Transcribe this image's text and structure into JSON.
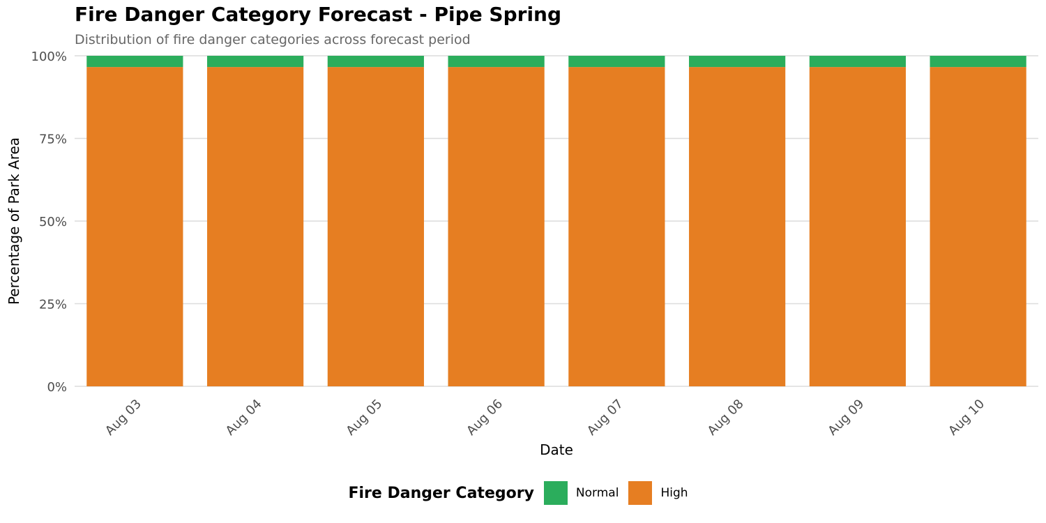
{
  "title": "Fire Danger Category Forecast - Pipe Spring",
  "subtitle": "Distribution of fire danger categories across forecast period",
  "legend": {
    "title": "Fire Danger Category",
    "placement": "bottom"
  },
  "colors": {
    "Normal": "#2bad5c",
    "High": "#e67e22",
    "grid": "#dcdcdc",
    "tick_text": "#4d4d4d"
  },
  "chart_data": {
    "type": "bar",
    "stacked": true,
    "title": "Fire Danger Category Forecast - Pipe Spring",
    "subtitle": "Distribution of fire danger categories across forecast period",
    "xlabel": "Date",
    "ylabel": "Percentage of Park Area",
    "ylim": [
      0,
      100
    ],
    "yticks": [
      0,
      25,
      50,
      75,
      100
    ],
    "ytick_labels": [
      "0%",
      "25%",
      "50%",
      "75%",
      "100%"
    ],
    "grid": true,
    "categories": [
      "Aug 03",
      "Aug 04",
      "Aug 05",
      "Aug 06",
      "Aug 07",
      "Aug 08",
      "Aug 09",
      "Aug 10"
    ],
    "series": [
      {
        "name": "High",
        "color": "#e67e22",
        "values": [
          96.6,
          96.6,
          96.6,
          96.6,
          96.6,
          96.6,
          96.6,
          96.6
        ]
      },
      {
        "name": "Normal",
        "color": "#2bad5c",
        "values": [
          3.4,
          3.4,
          3.4,
          3.4,
          3.4,
          3.4,
          3.4,
          3.4
        ]
      }
    ],
    "legend_order": [
      "Normal",
      "High"
    ]
  }
}
